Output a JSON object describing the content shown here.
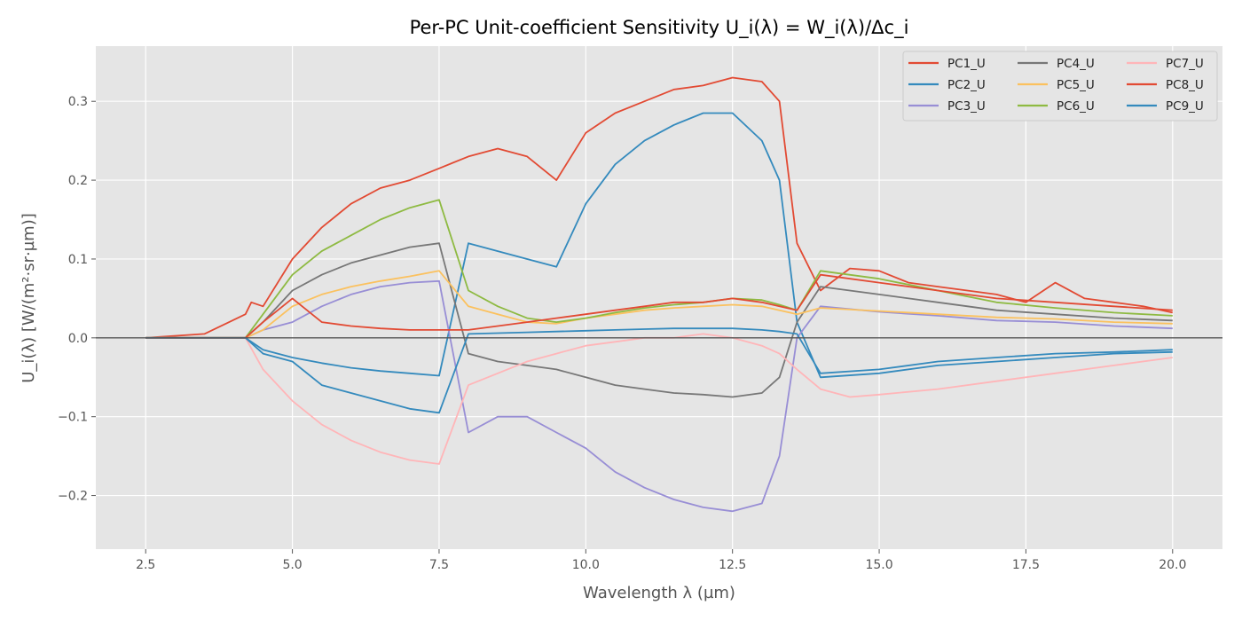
{
  "chart_data": {
    "type": "line",
    "title": "Per-PC Unit-coefficient Sensitivity U_i(λ) = W_i(λ)/Δc_i",
    "xlabel": "Wavelength λ (µm)",
    "ylabel": "U_i(λ) [W/(m²·sr·µm)]",
    "xlim": [
      1.65,
      20.85
    ],
    "ylim": [
      -0.268,
      0.37
    ],
    "xticks": [
      2.5,
      5.0,
      7.5,
      10.0,
      12.5,
      15.0,
      17.5,
      20.0
    ],
    "xtick_labels": [
      "2.5",
      "5.0",
      "7.5",
      "10.0",
      "12.5",
      "15.0",
      "17.5",
      "20.0"
    ],
    "yticks": [
      -0.2,
      -0.1,
      0.0,
      0.1,
      0.2,
      0.3
    ],
    "ytick_labels": [
      "−0.2",
      "−0.1",
      "0.0",
      "0.1",
      "0.2",
      "0.3"
    ],
    "grid": true,
    "zero_line": true,
    "legend_position": "top-right",
    "legend_columns": 3,
    "series": [
      {
        "name": "PC1_U",
        "color": "#E24A33",
        "x": [
          2.5,
          3.5,
          4.2,
          4.3,
          4.5,
          5.0,
          5.5,
          6.0,
          6.5,
          7.0,
          7.5,
          8.0,
          8.5,
          9.0,
          9.5,
          10.0,
          10.5,
          11.0,
          11.5,
          12.0,
          12.5,
          13.0,
          13.3,
          13.6,
          14.0,
          14.5,
          15.0,
          15.5,
          16.0,
          16.5,
          17.0,
          17.5,
          18.0,
          18.5,
          19.0,
          19.5,
          20.0
        ],
        "y": [
          0.0,
          0.005,
          0.03,
          0.045,
          0.04,
          0.1,
          0.14,
          0.17,
          0.19,
          0.2,
          0.215,
          0.23,
          0.24,
          0.23,
          0.2,
          0.26,
          0.285,
          0.3,
          0.315,
          0.32,
          0.33,
          0.325,
          0.3,
          0.12,
          0.06,
          0.088,
          0.085,
          0.07,
          0.065,
          0.06,
          0.055,
          0.045,
          0.07,
          0.05,
          0.045,
          0.04,
          0.032
        ]
      },
      {
        "name": "PC2_U",
        "color": "#348ABD",
        "x": [
          2.5,
          3.5,
          4.2,
          4.5,
          5.0,
          5.5,
          6.0,
          6.5,
          7.0,
          7.5,
          8.0,
          8.5,
          9.0,
          9.5,
          10.0,
          10.5,
          11.0,
          11.5,
          12.0,
          12.5,
          13.0,
          13.3,
          13.6,
          14.0,
          15.0,
          16.0,
          17.0,
          18.0,
          19.0,
          20.0
        ],
        "y": [
          0.0,
          0.0,
          0.0,
          -0.015,
          -0.025,
          -0.032,
          -0.038,
          -0.042,
          -0.045,
          -0.048,
          0.12,
          0.11,
          0.1,
          0.09,
          0.17,
          0.22,
          0.25,
          0.27,
          0.285,
          0.285,
          0.25,
          0.2,
          0.02,
          -0.05,
          -0.045,
          -0.035,
          -0.03,
          -0.025,
          -0.02,
          -0.018
        ]
      },
      {
        "name": "PC3_U",
        "color": "#988ED5",
        "x": [
          2.5,
          4.2,
          4.5,
          5.0,
          5.5,
          6.0,
          6.5,
          7.0,
          7.5,
          8.0,
          8.5,
          9.0,
          9.5,
          10.0,
          10.5,
          11.0,
          11.5,
          12.0,
          12.5,
          13.0,
          13.3,
          13.6,
          14.0,
          15.0,
          16.0,
          17.0,
          18.0,
          19.0,
          20.0
        ],
        "y": [
          0.0,
          0.0,
          0.01,
          0.02,
          0.04,
          0.055,
          0.065,
          0.07,
          0.072,
          -0.12,
          -0.1,
          -0.1,
          -0.12,
          -0.14,
          -0.17,
          -0.19,
          -0.205,
          -0.215,
          -0.22,
          -0.21,
          -0.15,
          0.0,
          0.04,
          0.033,
          0.028,
          0.022,
          0.02,
          0.015,
          0.012
        ]
      },
      {
        "name": "PC4_U",
        "color": "#777777",
        "x": [
          2.5,
          4.2,
          4.5,
          5.0,
          5.5,
          6.0,
          6.5,
          7.0,
          7.5,
          8.0,
          8.5,
          9.0,
          9.5,
          10.0,
          10.5,
          11.0,
          11.5,
          12.0,
          12.5,
          13.0,
          13.3,
          13.6,
          14.0,
          15.0,
          16.0,
          17.0,
          18.0,
          19.0,
          20.0
        ],
        "y": [
          0.0,
          0.0,
          0.02,
          0.06,
          0.08,
          0.095,
          0.105,
          0.115,
          0.12,
          -0.02,
          -0.03,
          -0.035,
          -0.04,
          -0.05,
          -0.06,
          -0.065,
          -0.07,
          -0.072,
          -0.075,
          -0.07,
          -0.05,
          0.02,
          0.065,
          0.055,
          0.045,
          0.035,
          0.03,
          0.025,
          0.022
        ]
      },
      {
        "name": "PC5_U",
        "color": "#FBC15E",
        "x": [
          2.5,
          4.2,
          4.5,
          5.0,
          5.5,
          6.0,
          6.5,
          7.0,
          7.5,
          8.0,
          8.5,
          9.0,
          9.5,
          10.0,
          10.5,
          11.0,
          11.5,
          12.0,
          12.5,
          13.0,
          13.3,
          13.6,
          14.0,
          15.0,
          16.0,
          17.0,
          18.0,
          19.0,
          20.0
        ],
        "y": [
          0.0,
          0.0,
          0.01,
          0.04,
          0.055,
          0.065,
          0.072,
          0.078,
          0.085,
          0.04,
          0.03,
          0.02,
          0.018,
          0.025,
          0.03,
          0.035,
          0.038,
          0.04,
          0.042,
          0.04,
          0.035,
          0.03,
          0.038,
          0.034,
          0.03,
          0.026,
          0.024,
          0.02,
          0.018
        ]
      },
      {
        "name": "PC6_U",
        "color": "#8EBA42",
        "x": [
          2.5,
          4.2,
          4.5,
          5.0,
          5.5,
          6.0,
          6.5,
          7.0,
          7.5,
          8.0,
          8.5,
          9.0,
          9.5,
          10.0,
          10.5,
          11.0,
          11.5,
          12.0,
          12.5,
          13.0,
          13.3,
          13.6,
          14.0,
          15.0,
          16.0,
          17.0,
          18.0,
          19.0,
          20.0
        ],
        "y": [
          0.0,
          0.0,
          0.03,
          0.08,
          0.11,
          0.13,
          0.15,
          0.165,
          0.175,
          0.06,
          0.04,
          0.025,
          0.02,
          0.025,
          0.032,
          0.038,
          0.042,
          0.045,
          0.05,
          0.048,
          0.042,
          0.035,
          0.085,
          0.075,
          0.06,
          0.045,
          0.038,
          0.032,
          0.028
        ]
      },
      {
        "name": "PC7_U",
        "color": "#FFB5B8",
        "x": [
          2.5,
          4.2,
          4.5,
          5.0,
          5.5,
          6.0,
          6.5,
          7.0,
          7.5,
          8.0,
          8.5,
          9.0,
          9.5,
          10.0,
          10.5,
          11.0,
          11.5,
          12.0,
          12.5,
          13.0,
          13.3,
          13.6,
          14.0,
          14.5,
          15.0,
          16.0,
          17.0,
          18.0,
          19.0,
          20.0
        ],
        "y": [
          0.0,
          0.0,
          -0.04,
          -0.08,
          -0.11,
          -0.13,
          -0.145,
          -0.155,
          -0.16,
          -0.06,
          -0.045,
          -0.03,
          -0.02,
          -0.01,
          -0.005,
          0.0,
          0.0,
          0.005,
          0.0,
          -0.01,
          -0.02,
          -0.04,
          -0.065,
          -0.075,
          -0.072,
          -0.065,
          -0.055,
          -0.045,
          -0.035,
          -0.025
        ]
      },
      {
        "name": "PC8_U",
        "color": "#E24A33",
        "x": [
          2.5,
          4.2,
          4.5,
          5.0,
          5.5,
          6.0,
          6.5,
          7.0,
          7.5,
          8.0,
          8.5,
          9.0,
          9.5,
          10.0,
          10.5,
          11.0,
          11.5,
          12.0,
          12.5,
          13.0,
          13.3,
          13.6,
          14.0,
          15.0,
          16.0,
          17.0,
          18.0,
          19.0,
          20.0
        ],
        "y": [
          0.0,
          0.0,
          0.02,
          0.05,
          0.02,
          0.015,
          0.012,
          0.01,
          0.01,
          0.01,
          0.015,
          0.02,
          0.025,
          0.03,
          0.035,
          0.04,
          0.045,
          0.045,
          0.05,
          0.045,
          0.04,
          0.035,
          0.08,
          0.07,
          0.06,
          0.05,
          0.045,
          0.04,
          0.035
        ]
      },
      {
        "name": "PC9_U",
        "color": "#348ABD",
        "x": [
          2.5,
          4.2,
          4.5,
          5.0,
          5.5,
          6.0,
          6.5,
          7.0,
          7.5,
          8.0,
          8.5,
          9.0,
          9.5,
          10.0,
          10.5,
          11.0,
          11.5,
          12.0,
          12.5,
          13.0,
          13.3,
          13.6,
          14.0,
          15.0,
          16.0,
          17.0,
          18.0,
          19.0,
          20.0
        ],
        "y": [
          0.0,
          0.0,
          -0.02,
          -0.03,
          -0.06,
          -0.07,
          -0.08,
          -0.09,
          -0.095,
          0.005,
          0.006,
          0.007,
          0.008,
          0.009,
          0.01,
          0.011,
          0.012,
          0.012,
          0.012,
          0.01,
          0.008,
          0.005,
          -0.045,
          -0.04,
          -0.03,
          -0.025,
          -0.02,
          -0.018,
          -0.015
        ]
      }
    ]
  }
}
